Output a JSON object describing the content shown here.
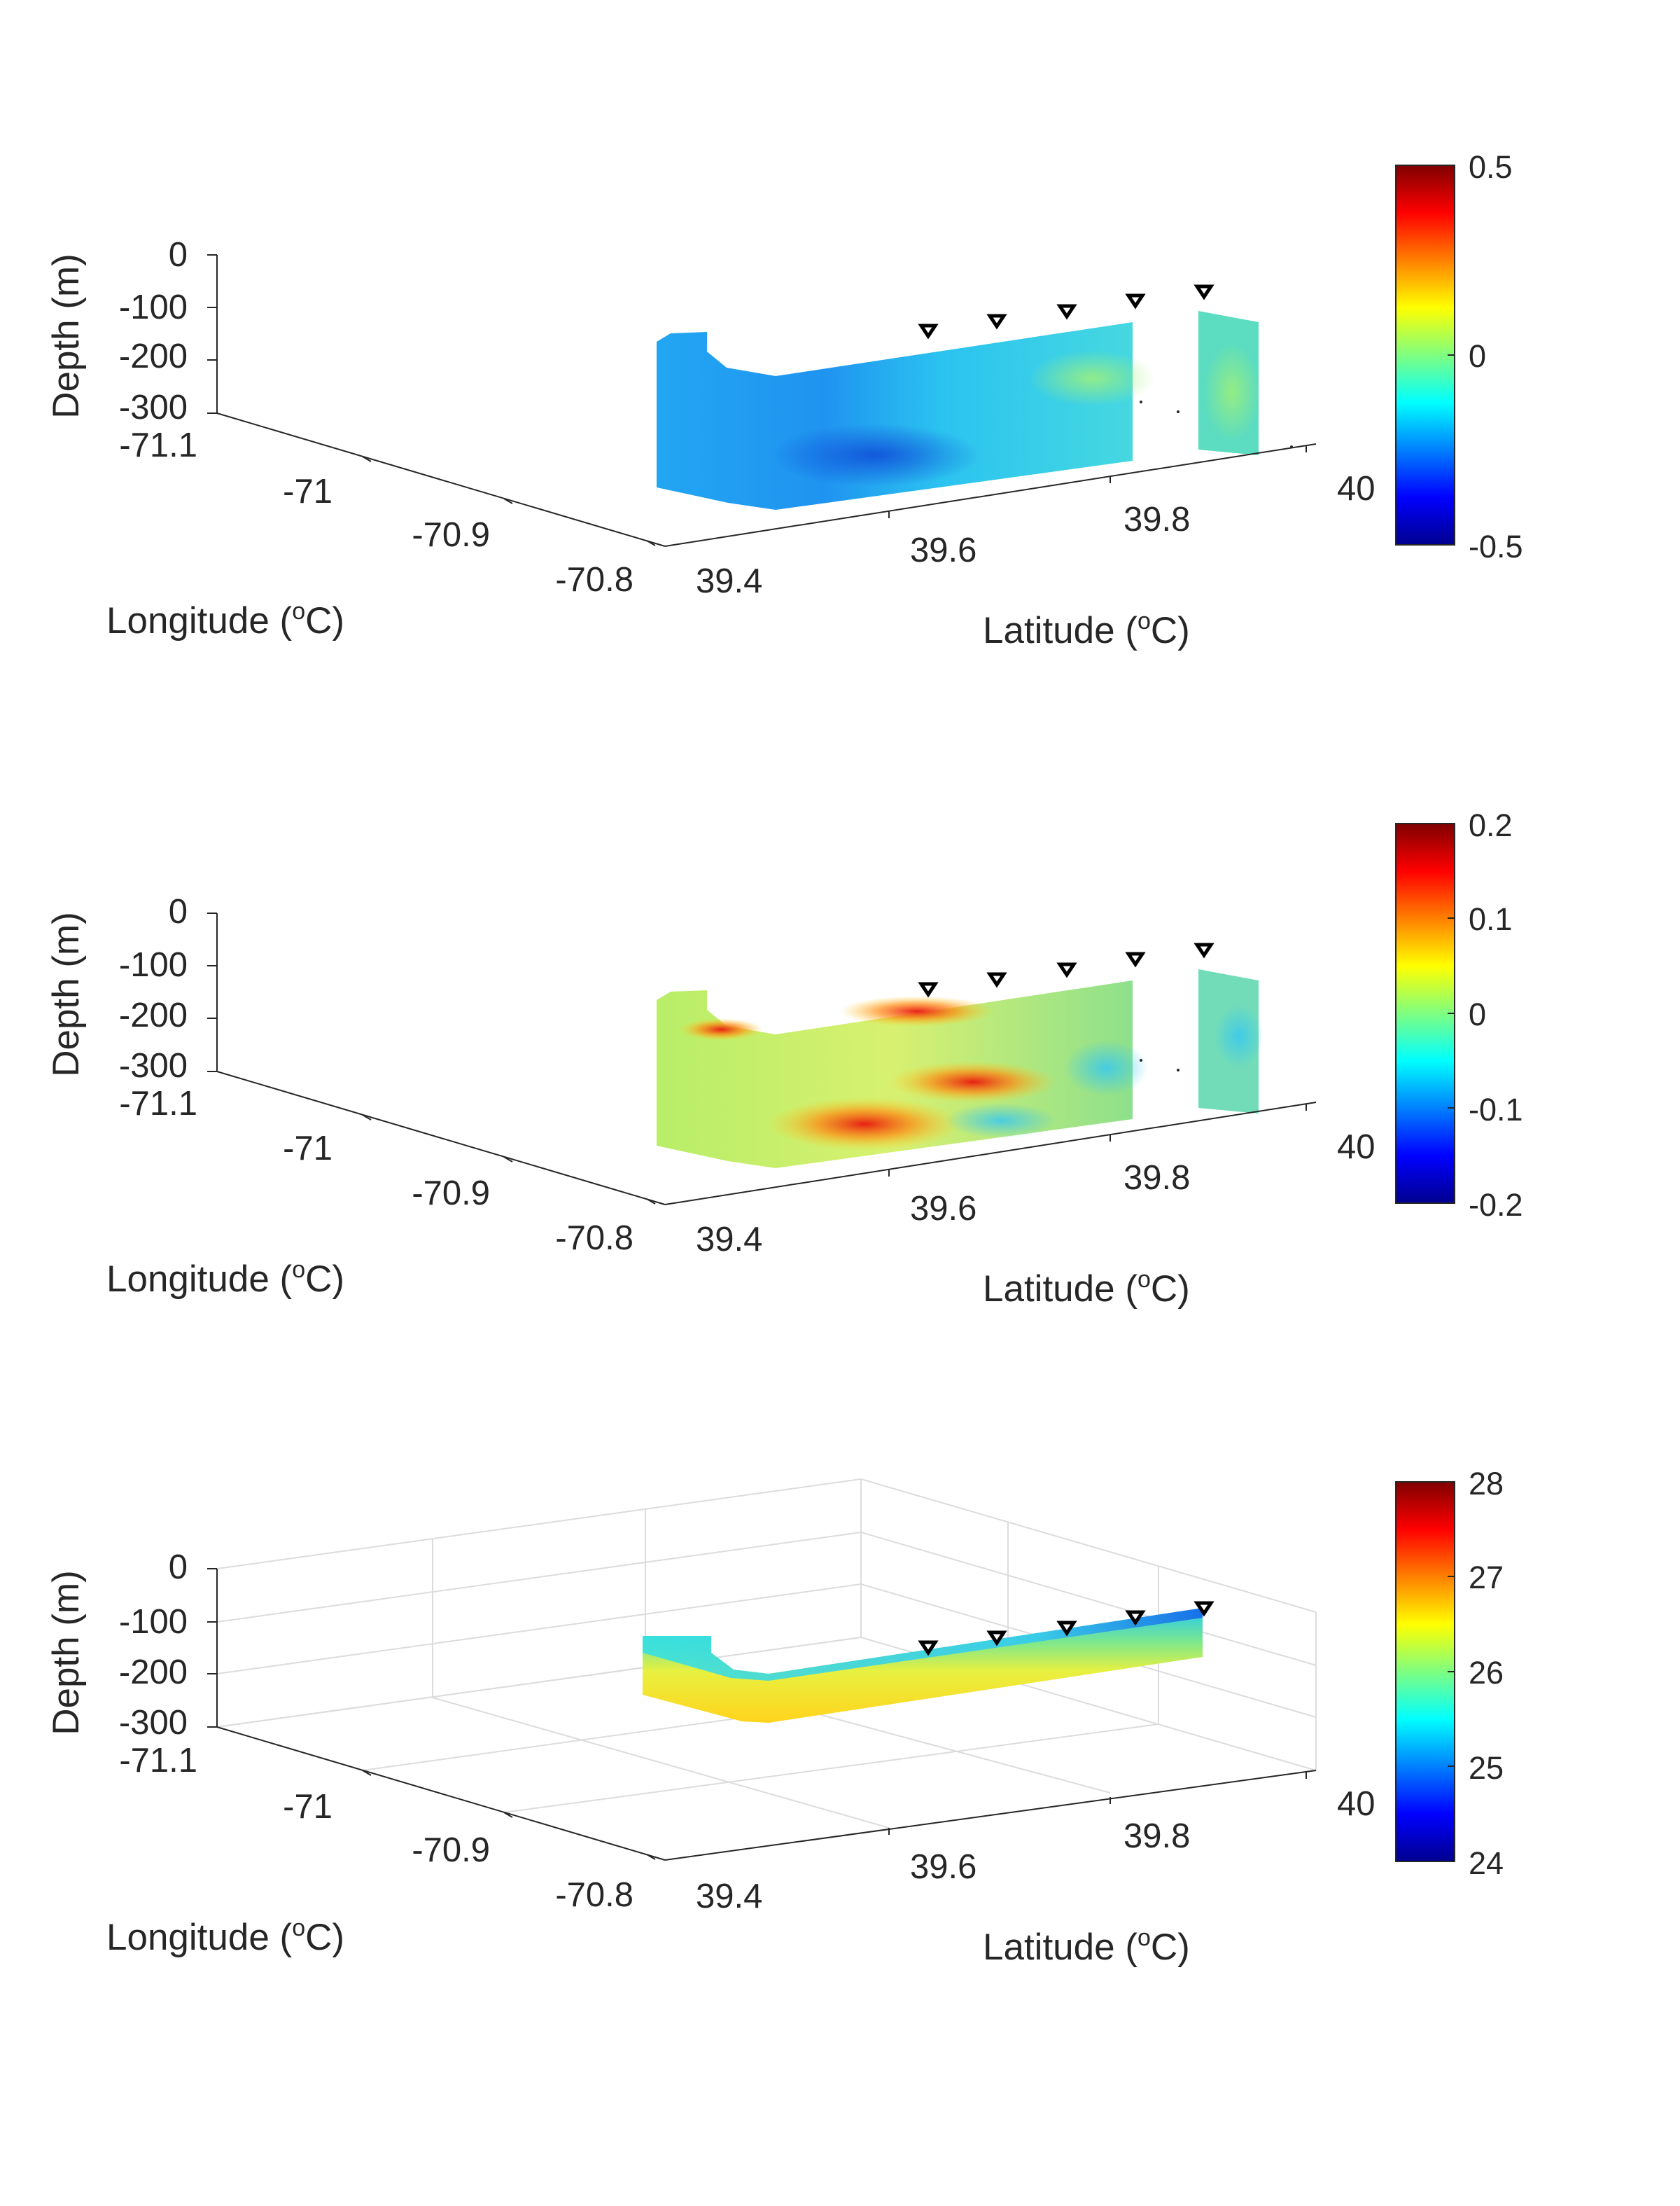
{
  "chart_data": [
    {
      "type": "3d-surface-section",
      "depth_label": "Depth (m)",
      "lon_label_prefix": "Longitude (",
      "lat_label_prefix": "Latitude (",
      "label_sup": "o",
      "label_unit": "C)",
      "depth_ticks": [
        "0",
        "-100",
        "-200",
        "-300"
      ],
      "lon_ticks": [
        "-71.1",
        "-71",
        "-70.9",
        "-70.8"
      ],
      "lat_ticks": [
        "39.4",
        "39.6",
        "39.8",
        "40"
      ],
      "colorbar": {
        "ticks": [
          "0.5",
          "0",
          "-0.5"
        ],
        "range": [
          -0.5,
          0.5
        ],
        "colormap": "jet"
      },
      "grid": false,
      "stations": 5
    },
    {
      "type": "3d-surface-section",
      "depth_label": "Depth (m)",
      "lon_label_prefix": "Longitude (",
      "lat_label_prefix": "Latitude (",
      "label_sup": "o",
      "label_unit": "C)",
      "depth_ticks": [
        "0",
        "-100",
        "-200",
        "-300"
      ],
      "lon_ticks": [
        "-71.1",
        "-71",
        "-70.9",
        "-70.8"
      ],
      "lat_ticks": [
        "39.4",
        "39.6",
        "39.8",
        "40"
      ],
      "colorbar": {
        "ticks": [
          "0.2",
          "0.1",
          "0",
          "-0.1",
          "-0.2"
        ],
        "range": [
          -0.2,
          0.2
        ],
        "colormap": "jet"
      },
      "grid": false,
      "stations": 5
    },
    {
      "type": "3d-surface-section",
      "depth_label": "Depth (m)",
      "lon_label_prefix": "Longitude (",
      "lat_label_prefix": "Latitude (",
      "label_sup": "o",
      "label_unit": "C)",
      "depth_ticks": [
        "0",
        "-100",
        "-200",
        "-300"
      ],
      "lon_ticks": [
        "-71.1",
        "-71",
        "-70.9",
        "-70.8"
      ],
      "lat_ticks": [
        "39.4",
        "39.6",
        "39.8",
        "40"
      ],
      "colorbar": {
        "ticks": [
          "28",
          "27",
          "26",
          "25",
          "24"
        ],
        "range": [
          24,
          28
        ],
        "colormap": "jet"
      },
      "grid": true,
      "stations": 5
    }
  ]
}
